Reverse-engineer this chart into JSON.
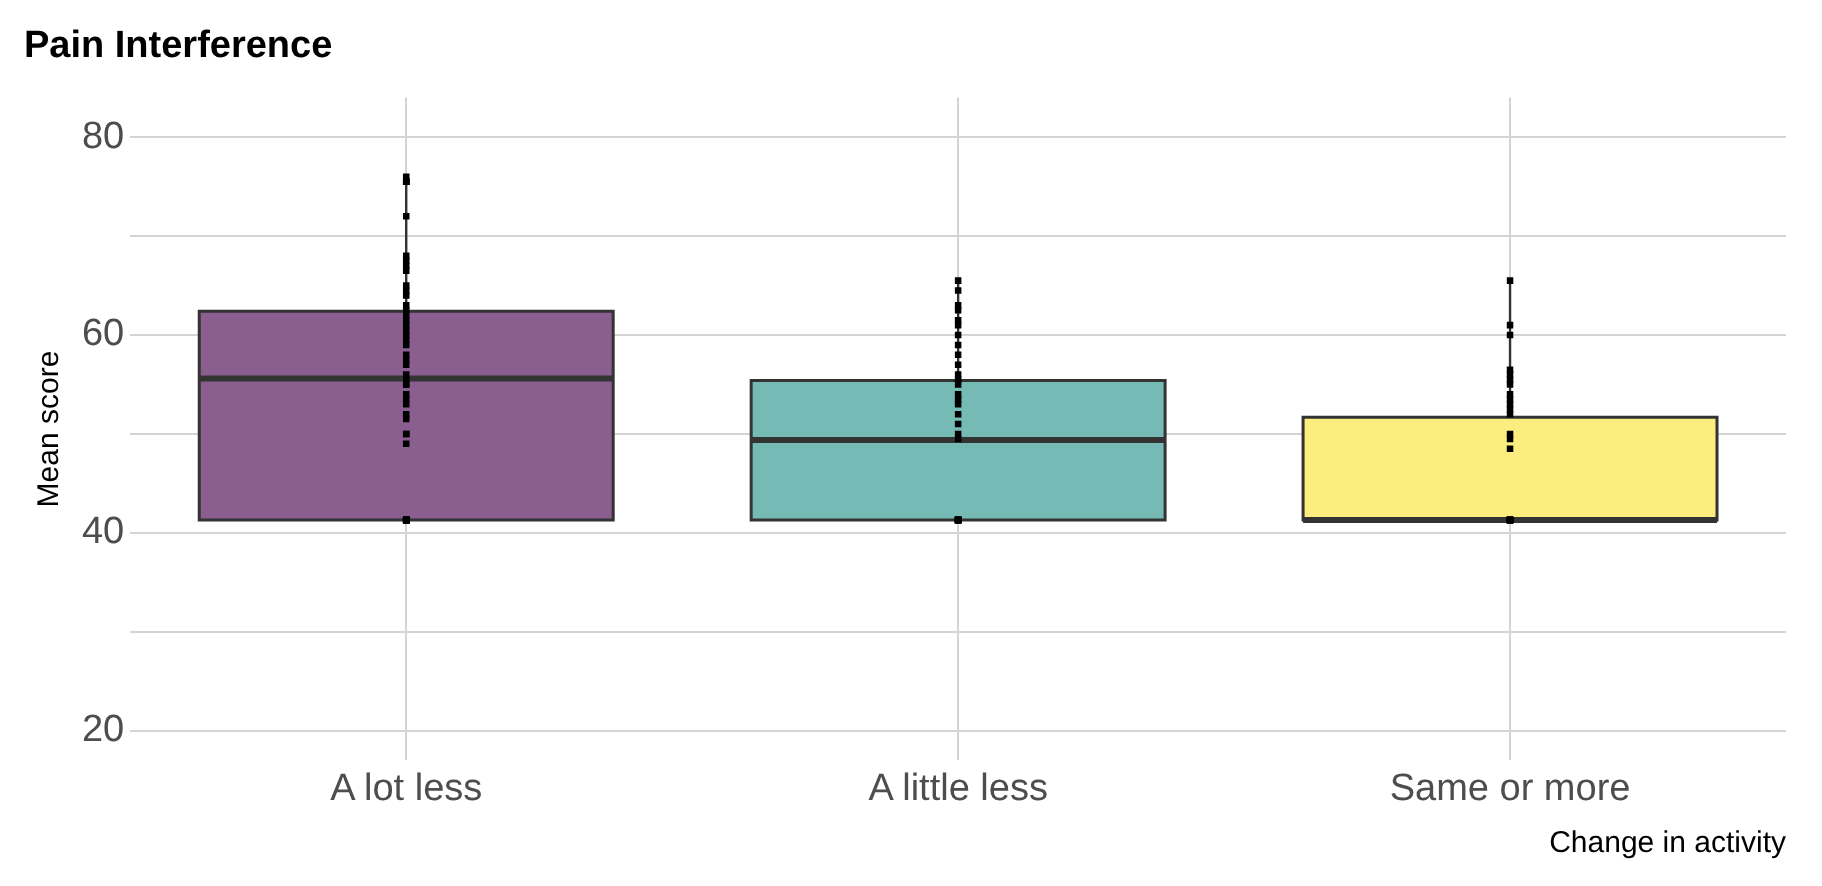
{
  "chart_data": {
    "type": "box",
    "title": "Pain Interference",
    "xlabel": "Change in activity",
    "ylabel": "Mean score",
    "categories": [
      "A lot less",
      "A little less",
      "Same or more"
    ],
    "colors": [
      "#8b5e90",
      "#76bab5",
      "#fcee7e"
    ],
    "boxes": [
      {
        "low": 41.3,
        "q1": 41.3,
        "median": 55.6,
        "q3": 62.4,
        "high": 75.8
      },
      {
        "low": 41.3,
        "q1": 41.3,
        "median": 49.4,
        "q3": 55.4,
        "high": 65.3
      },
      {
        "low": 41.3,
        "q1": 41.3,
        "median": 41.3,
        "q3": 51.7,
        "high": 65.3
      }
    ],
    "series": [
      {
        "type": "scatter",
        "color": "#000000",
        "x": [
          "A lot less",
          "A lot less",
          "A lot less",
          "A lot less",
          "A lot less",
          "A lot less",
          "A lot less",
          "A lot less",
          "A lot less",
          "A lot less",
          "A lot less",
          "A lot less",
          "A lot less",
          "A lot less",
          "A lot less",
          "A lot less",
          "A lot less",
          "A lot less",
          "A lot less",
          "A lot less",
          "A lot less",
          "A lot less",
          "A lot less",
          "A lot less",
          "A lot less",
          "A lot less",
          "A lot less",
          "A lot less",
          "A lot less",
          "A lot less",
          "A lot less",
          "A lot less",
          "A lot less",
          "A lot less",
          "A lot less",
          "A lot less",
          "A lot less",
          "A lot less",
          "A lot less",
          "A lot less",
          "A lot less",
          "A lot less",
          "A lot less",
          "A lot less",
          "A lot less",
          "A lot less",
          "A lot less",
          "A lot less",
          "A lot less",
          "A lot less",
          "A little less",
          "A little less",
          "A little less",
          "A little less",
          "A little less",
          "A little less",
          "A little less",
          "A little less",
          "A little less",
          "A little less",
          "A little less",
          "A little less",
          "A little less",
          "A little less",
          "A little less",
          "A little less",
          "A little less",
          "A little less",
          "A little less",
          "A little less",
          "A little less",
          "A little less",
          "A little less",
          "A little less",
          "A little less",
          "A little less",
          "A little less",
          "A little less",
          "A little less",
          "A little less",
          "Same or more",
          "Same or more",
          "Same or more",
          "Same or more",
          "Same or more",
          "Same or more",
          "Same or more",
          "Same or more",
          "Same or more",
          "Same or more",
          "Same or more",
          "Same or more",
          "Same or more",
          "Same or more",
          "Same or more",
          "Same or more",
          "Same or more",
          "Same or more",
          "Same or more",
          "Same or more",
          "Same or more",
          "Same or more",
          "Same or more",
          "Same or more"
        ],
        "values": [
          76,
          75.5,
          75.5,
          75.5,
          75.5,
          72,
          68,
          67.5,
          67,
          66.5,
          65,
          64.5,
          64,
          63,
          62.5,
          62,
          61.5,
          61,
          60.5,
          60,
          59.5,
          59,
          58,
          57.5,
          57,
          56,
          55.5,
          55,
          55,
          54,
          53.5,
          53,
          52,
          51.5,
          50,
          50,
          49,
          41.3,
          41.3,
          41.3,
          41.3,
          41.3,
          41.3,
          41.3,
          41.3,
          41.3,
          41.3,
          41.3,
          41.3,
          41.3,
          65.5,
          64.5,
          63,
          62.5,
          61.5,
          61,
          60,
          59,
          58,
          57,
          56,
          55.5,
          55,
          54,
          53.5,
          53,
          52,
          51,
          50,
          49.5,
          41.3,
          41.3,
          41.3,
          41.3,
          41.3,
          41.3,
          41.3,
          41.3,
          41.3,
          41.3,
          65.5,
          61,
          60,
          56.5,
          56,
          55.5,
          55,
          54,
          53.5,
          53,
          52.5,
          52,
          50,
          49.5,
          48.5,
          41.3,
          41.3,
          41.3,
          41.3,
          41.3,
          41.3,
          41.3,
          41.3,
          41.3
        ]
      }
    ],
    "ylim": [
      17,
      84
    ],
    "yticks": [
      20,
      40,
      60,
      80
    ],
    "grid": true,
    "legend": false
  }
}
